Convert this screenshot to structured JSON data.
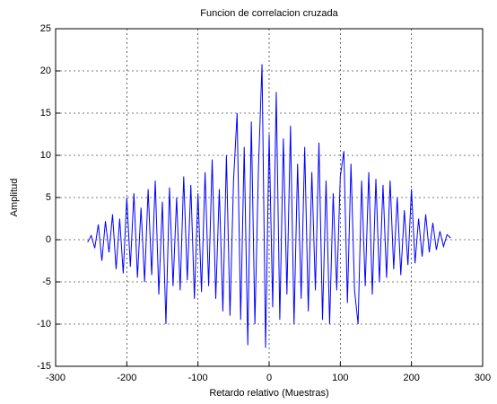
{
  "chart_data": {
    "type": "line",
    "title": "Funcion de correlacion cruzada",
    "xlabel": "Retardo relativo (Muestras)",
    "ylabel": "Amplitud",
    "color": "#0000ff",
    "grid": true,
    "xlim": [
      -300,
      300
    ],
    "xticks": [
      -300,
      -200,
      -100,
      0,
      100,
      200,
      300
    ],
    "ylim": [
      -15,
      25
    ],
    "yticks": [
      -15,
      -10,
      -5,
      0,
      5,
      10,
      15,
      20,
      25
    ],
    "x": [
      -255,
      -250,
      -245,
      -240,
      -235,
      -230,
      -225,
      -220,
      -215,
      -210,
      -205,
      -200,
      -195,
      -190,
      -185,
      -180,
      -175,
      -170,
      -165,
      -160,
      -155,
      -150,
      -145,
      -140,
      -135,
      -130,
      -125,
      -120,
      -115,
      -110,
      -105,
      -100,
      -95,
      -90,
      -85,
      -80,
      -75,
      -70,
      -65,
      -60,
      -55,
      -50,
      -45,
      -40,
      -35,
      -30,
      -25,
      -20,
      -15,
      -10,
      -5,
      0,
      5,
      10,
      15,
      20,
      25,
      30,
      35,
      40,
      45,
      50,
      55,
      60,
      65,
      70,
      75,
      80,
      85,
      90,
      95,
      100,
      105,
      110,
      115,
      120,
      125,
      130,
      135,
      140,
      145,
      150,
      155,
      160,
      165,
      170,
      175,
      180,
      185,
      190,
      195,
      200,
      205,
      210,
      215,
      220,
      225,
      230,
      235,
      240,
      245,
      250,
      255
    ],
    "values": [
      -0.3,
      0.5,
      -1.0,
      1.8,
      -2.5,
      2.2,
      -1.5,
      3.0,
      -3.5,
      2.5,
      -4.0,
      5.0,
      -3.2,
      5.5,
      -4.5,
      3.8,
      -5.0,
      6.0,
      -4.2,
      7.0,
      -6.5,
      4.5,
      -10.0,
      6.2,
      -5.5,
      5.0,
      -6.0,
      7.5,
      -4.8,
      6.5,
      -7.0,
      5.5,
      -6.2,
      8.0,
      -5.5,
      9.5,
      -7.0,
      6.0,
      -8.5,
      10.0,
      -9.0,
      7.0,
      15.0,
      -9.5,
      11.0,
      -12.5,
      14.0,
      -10.0,
      8.5,
      20.8,
      -12.8,
      12.5,
      -8.0,
      17.5,
      -9.5,
      12.0,
      -6.5,
      13.5,
      -10.0,
      9.0,
      -7.0,
      11.0,
      -8.5,
      8.0,
      -6.0,
      11.5,
      -9.5,
      7.0,
      -10.0,
      5.5,
      -6.0,
      7.5,
      10.5,
      -7.5,
      9.0,
      -6.0,
      -10.0,
      7.0,
      -5.5,
      8.0,
      -6.5,
      7.2,
      -5.0,
      6.5,
      -4.5,
      7.0,
      -3.5,
      5.0,
      -4.2,
      3.5,
      -3.0,
      6.0,
      -2.8,
      2.5,
      -2.0,
      3.0,
      -1.5,
      2.0,
      -1.2,
      1.0,
      -0.8,
      0.6,
      0.2
    ]
  }
}
